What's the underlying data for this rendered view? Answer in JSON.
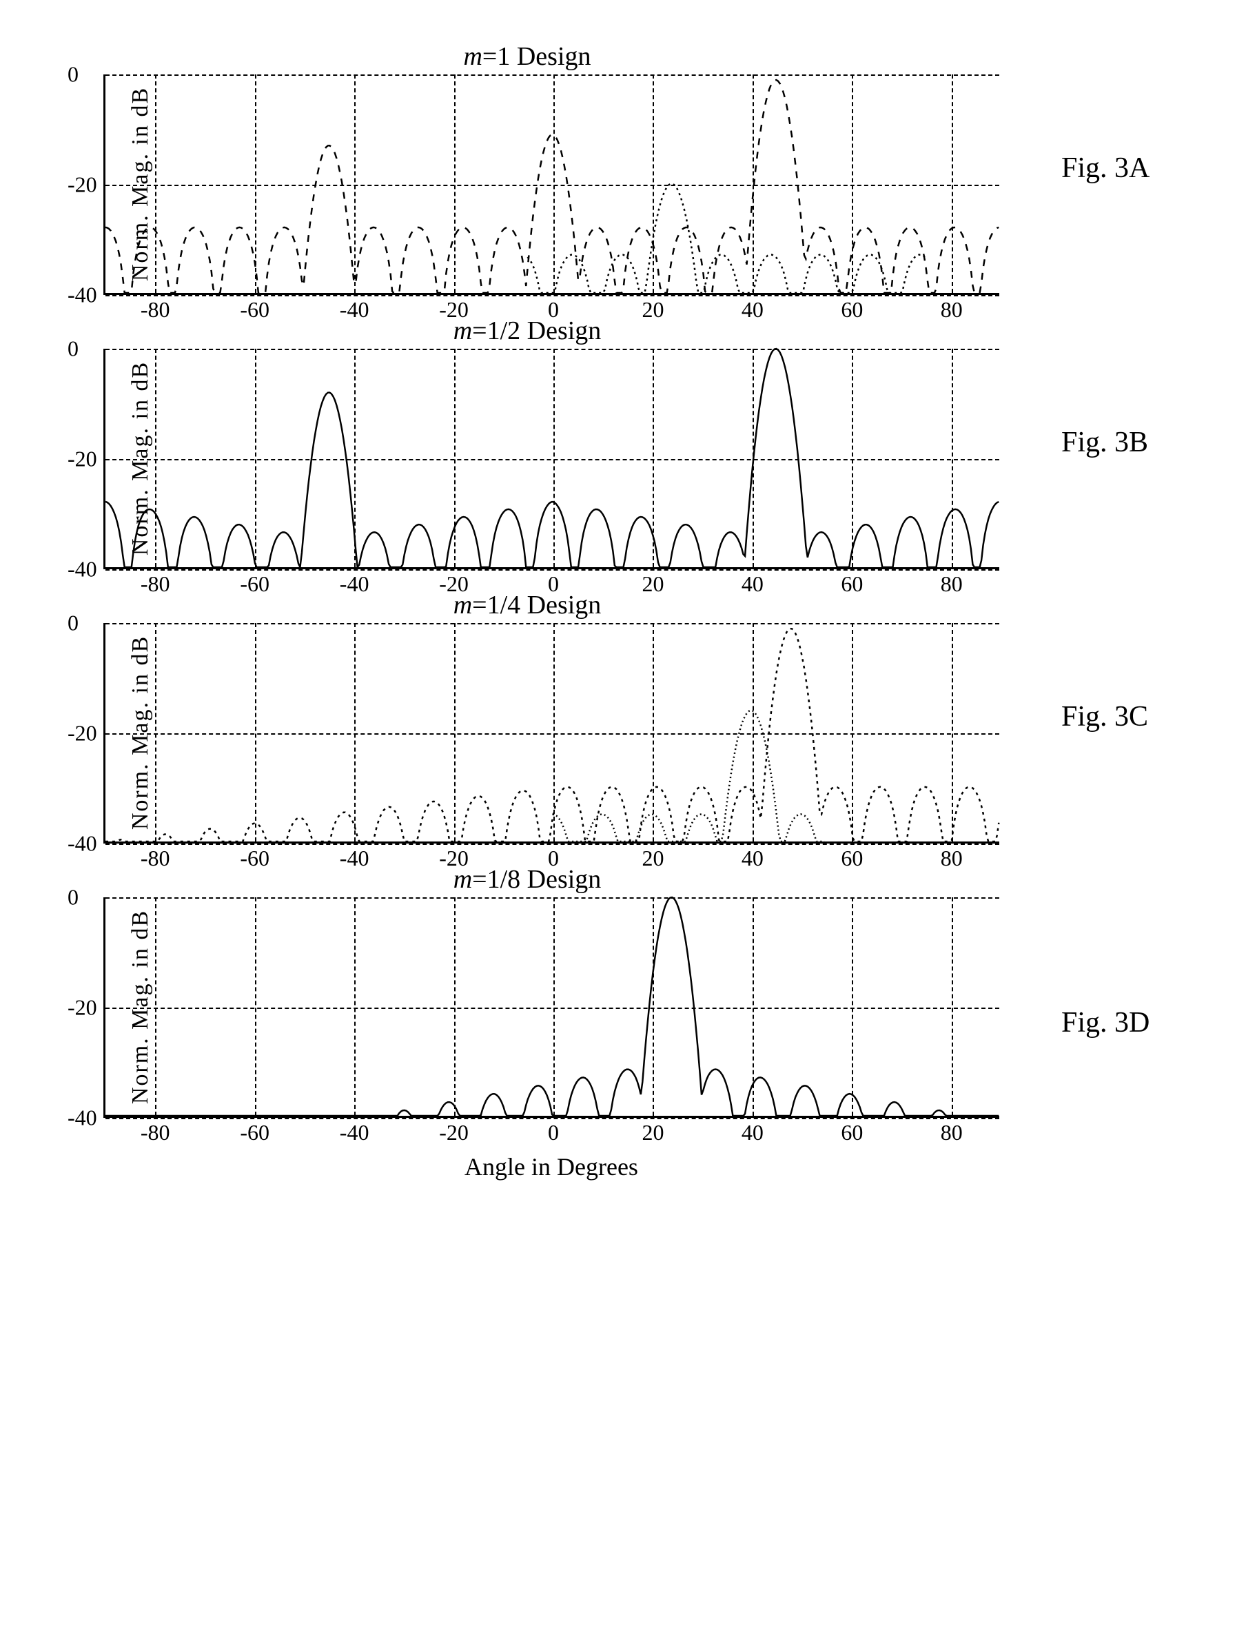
{
  "global": {
    "xlabel": "Angle in Degrees",
    "ylabel": "Norm. Mag. in dB",
    "xlim": [
      -90,
      90
    ],
    "ylim": [
      -40,
      0
    ],
    "xticks": [
      -80,
      -60,
      -40,
      -20,
      0,
      20,
      40,
      60,
      80
    ],
    "yticks": [
      -40,
      -20,
      0
    ],
    "grid_color": "#000000",
    "line_color": "#000000",
    "background_color": "#ffffff",
    "label_fontsize": 34,
    "tick_fontsize": 32,
    "title_fontsize": 38,
    "figlabel_fontsize": 42
  },
  "panels": [
    {
      "title_prefix": "m",
      "title_suffix": "=1 Design",
      "fig_label": "Fig. 3A",
      "line_dash": "10 10",
      "peaks": [
        {
          "angle": -45,
          "mag": -13
        },
        {
          "angle": 0,
          "mag": -11
        },
        {
          "angle": 45,
          "mag": -1
        }
      ],
      "sidelobe_envelope_db": -28,
      "second_trace": {
        "line_dash": "3 5",
        "span": [
          -5,
          75
        ],
        "peak": {
          "angle": 24,
          "mag": -20
        },
        "floor_db": -38
      }
    },
    {
      "title_prefix": "m",
      "title_suffix": "=1/2 Design",
      "fig_label": "Fig. 3B",
      "line_dash": "",
      "peaks": [
        {
          "angle": -45,
          "mag": -8
        },
        {
          "angle": 45,
          "mag": 0
        }
      ],
      "sidelobe_envelope_db": -28,
      "center_floor_db": -35
    },
    {
      "title_prefix": "m",
      "title_suffix": "=1/4 Design",
      "fig_label": "Fig. 3C",
      "line_dash": "4 6",
      "peaks": [
        {
          "angle": 48,
          "mag": -1
        }
      ],
      "sidelobe_envelope_db": -30,
      "left_floor_db": -40,
      "second_trace": {
        "line_dash": "2 4",
        "span": [
          0,
          55
        ],
        "peak": {
          "angle": 40,
          "mag": -16
        },
        "floor_db": -40
      }
    },
    {
      "title_prefix": "m",
      "title_suffix": "=1/8 Design",
      "fig_label": "Fig. 3D",
      "line_dash": "",
      "peaks": [
        {
          "angle": 24,
          "mag": 0
        }
      ],
      "sidelobe_envelope_db": -30,
      "tail_floor_db": -40
    }
  ]
}
